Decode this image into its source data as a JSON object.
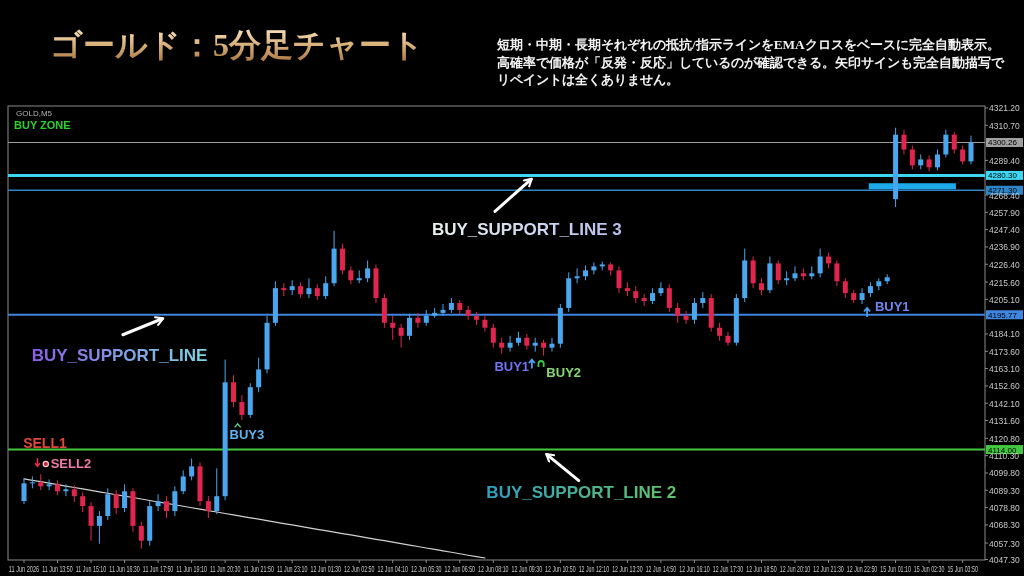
{
  "chart_data": {
    "type": "candlestick",
    "title": "ゴールド：5分足チャート",
    "subtitle": "短期・中期・長期それぞれの抵抗/指示ラインをEMAクロスをベースに完全自動表示。高確率で価格が「反発・反応」しているのが確認できる。矢印サインも完全自動描写でリペイントは全くありません。",
    "categories": [
      "11 Jun 2026",
      null,
      null,
      null,
      "11 Jun 13:50",
      null,
      null,
      null,
      "11 Jun 15:10",
      null,
      null,
      null,
      "11 Jun 16:30",
      null,
      null,
      null,
      "11 Jun 17:50",
      null,
      null,
      null,
      "11 Jun 19:10",
      null,
      null,
      null,
      "11 Jun 20:30",
      null,
      null,
      null,
      "11 Jun 21:50",
      null,
      null,
      null,
      "11 Jun 23:10",
      null,
      null,
      null,
      "12 Jun 01:30",
      null,
      null,
      null,
      "12 Jun 02:50",
      null,
      null,
      null,
      "12 Jun 04:10",
      null,
      null,
      null,
      "12 Jun 05:30",
      null,
      null,
      null,
      "12 Jun 06:50",
      null,
      null,
      null,
      "12 Jun 08:10",
      null,
      null,
      null,
      "12 Jun 09:30",
      null,
      null,
      null,
      "12 Jun 10:50",
      null,
      null,
      null,
      "12 Jun 12:10",
      null,
      null,
      null,
      "12 Jun 13:30",
      null,
      null,
      null,
      "12 Jun 14:50",
      null,
      null,
      null,
      "12 Jun 16:10",
      null,
      null,
      null,
      "12 Jun 17:30",
      null,
      null,
      null,
      "12 Jun 18:50",
      null,
      null,
      null,
      "12 Jun 20:10",
      null,
      null,
      null,
      "12 Jun 21:30",
      null,
      null,
      null,
      "12 Jun 22:50",
      null,
      null,
      null,
      "15 Jun 01:10",
      null,
      null,
      null,
      "15 Jun 02:30",
      null,
      null,
      null,
      "15 Jun 03:50",
      null
    ],
    "ohlc": [
      [
        4082.7,
        4096.5,
        4080.9,
        4093.5
      ],
      [
        4093.5,
        4097.7,
        4090.5,
        4094.1
      ],
      [
        4094.1,
        4099.0,
        4089.3,
        4091.7
      ],
      [
        4091.7,
        4095.9,
        4089.3,
        4092.9
      ],
      [
        4092.9,
        4095.3,
        4086.3,
        4088.7
      ],
      [
        4088.7,
        4092.9,
        4085.7,
        4089.9
      ],
      [
        4089.9,
        4092.3,
        4082.1,
        4085.7
      ],
      [
        4085.7,
        4088.1,
        4076.1,
        4079.7
      ],
      [
        4079.7,
        4082.1,
        4058.7,
        4067.7
      ],
      [
        4067.7,
        4076.7,
        4056.9,
        4073.7
      ],
      [
        4073.7,
        4090.5,
        4071.3,
        4086.9
      ],
      [
        4086.9,
        4089.3,
        4074.9,
        4078.5
      ],
      [
        4078.5,
        4092.9,
        4076.1,
        4088.7
      ],
      [
        4088.7,
        4090.5,
        4064.1,
        4067.7
      ],
      [
        4067.7,
        4070.1,
        4053.9,
        4058.7
      ],
      [
        4058.7,
        4082.7,
        4055.7,
        4079.7
      ],
      [
        4079.7,
        4086.9,
        4076.7,
        4082.7
      ],
      [
        4082.7,
        4085.7,
        4072.5,
        4076.7
      ],
      [
        4076.7,
        4091.7,
        4073.7,
        4088.7
      ],
      [
        4088.7,
        4101.4,
        4086.9,
        4097.7
      ],
      [
        4097.7,
        4108.6,
        4095.3,
        4103.8
      ],
      [
        4103.8,
        4106.2,
        4079.7,
        4082.7
      ],
      [
        4082.7,
        4085.7,
        4072.5,
        4076.7
      ],
      [
        4076.7,
        4102.6,
        4074.9,
        4085.7
      ],
      [
        4085.7,
        4168.6,
        4083.3,
        4154.8
      ],
      [
        4154.8,
        4159.0,
        4139.8,
        4142.8
      ],
      [
        4142.8,
        4147.0,
        4132.0,
        4135.0
      ],
      [
        4135.0,
        4154.2,
        4133.2,
        4151.8
      ],
      [
        4151.8,
        4169.8,
        4148.8,
        4162.6
      ],
      [
        4162.6,
        4195.1,
        4160.2,
        4190.9
      ],
      [
        4190.9,
        4216.1,
        4189.1,
        4211.9
      ],
      [
        4211.9,
        4214.9,
        4207.1,
        4210.7
      ],
      [
        4210.7,
        4216.7,
        4207.7,
        4213.1
      ],
      [
        4213.1,
        4215.5,
        4205.9,
        4208.3
      ],
      [
        4208.3,
        4217.9,
        4205.9,
        4211.9
      ],
      [
        4211.9,
        4214.3,
        4204.7,
        4207.1
      ],
      [
        4207.1,
        4219.1,
        4205.3,
        4214.9
      ],
      [
        4214.9,
        4246.7,
        4213.1,
        4235.9
      ],
      [
        4235.9,
        4238.9,
        4220.3,
        4222.7
      ],
      [
        4222.7,
        4225.1,
        4214.3,
        4216.7
      ],
      [
        4216.7,
        4222.7,
        4214.9,
        4217.9
      ],
      [
        4217.9,
        4228.7,
        4215.5,
        4223.9
      ],
      [
        4223.9,
        4226.3,
        4202.9,
        4205.9
      ],
      [
        4205.9,
        4208.3,
        4187.9,
        4190.9
      ],
      [
        4190.9,
        4195.1,
        4180.6,
        4187.9
      ],
      [
        4187.9,
        4190.3,
        4175.8,
        4183.0
      ],
      [
        4183.0,
        4196.3,
        4180.6,
        4193.9
      ],
      [
        4193.9,
        4196.9,
        4187.9,
        4190.9
      ],
      [
        4190.9,
        4198.7,
        4189.1,
        4195.1
      ],
      [
        4195.1,
        4199.9,
        4193.9,
        4196.9
      ],
      [
        4196.9,
        4202.3,
        4195.1,
        4198.7
      ],
      [
        4198.7,
        4205.9,
        4196.9,
        4202.9
      ],
      [
        4202.9,
        4204.7,
        4196.3,
        4198.7
      ],
      [
        4198.7,
        4201.1,
        4192.7,
        4195.1
      ],
      [
        4195.1,
        4197.5,
        4189.7,
        4192.7
      ],
      [
        4192.7,
        4195.1,
        4185.5,
        4187.9
      ],
      [
        4187.9,
        4190.3,
        4175.8,
        4178.8
      ],
      [
        4178.8,
        4181.8,
        4172.2,
        4175.8
      ],
      [
        4175.8,
        4183.0,
        4173.4,
        4178.8
      ],
      [
        4178.8,
        4185.5,
        4177.0,
        4181.8
      ],
      [
        4181.8,
        4184.2,
        4174.6,
        4177.0
      ],
      [
        4177.0,
        4181.8,
        4173.4,
        4178.8
      ],
      [
        4178.8,
        4180.6,
        4171.0,
        4175.8
      ],
      [
        4175.8,
        4181.8,
        4173.4,
        4178.2
      ],
      [
        4178.2,
        4202.3,
        4175.8,
        4199.9
      ],
      [
        4199.9,
        4221.5,
        4197.5,
        4217.9
      ],
      [
        4217.9,
        4223.9,
        4214.9,
        4219.1
      ],
      [
        4219.1,
        4225.7,
        4216.7,
        4222.7
      ],
      [
        4222.7,
        4227.5,
        4220.3,
        4225.1
      ],
      [
        4225.1,
        4228.1,
        4222.7,
        4226.3
      ],
      [
        4226.3,
        4227.5,
        4219.7,
        4222.7
      ],
      [
        4222.7,
        4225.1,
        4208.9,
        4211.9
      ],
      [
        4211.9,
        4215.5,
        4207.1,
        4210.1
      ],
      [
        4210.1,
        4213.1,
        4202.9,
        4205.9
      ],
      [
        4205.9,
        4208.3,
        4201.1,
        4204.1
      ],
      [
        4204.1,
        4211.9,
        4202.3,
        4208.9
      ],
      [
        4208.9,
        4215.5,
        4207.1,
        4211.9
      ],
      [
        4211.9,
        4214.3,
        4197.5,
        4199.9
      ],
      [
        4199.9,
        4202.9,
        4190.9,
        4195.1
      ],
      [
        4195.1,
        4198.1,
        4190.3,
        4192.7
      ],
      [
        4192.7,
        4205.9,
        4190.3,
        4202.9
      ],
      [
        4202.9,
        4209.5,
        4199.9,
        4205.9
      ],
      [
        4205.9,
        4208.3,
        4185.5,
        4187.9
      ],
      [
        4187.9,
        4190.9,
        4180.0,
        4183.0
      ],
      [
        4183.0,
        4185.5,
        4177.0,
        4178.8
      ],
      [
        4178.8,
        4208.3,
        4177.0,
        4205.9
      ],
      [
        4205.9,
        4235.9,
        4203.5,
        4228.7
      ],
      [
        4228.7,
        4231.1,
        4211.9,
        4214.9
      ],
      [
        4214.9,
        4217.9,
        4207.7,
        4210.7
      ],
      [
        4210.7,
        4231.1,
        4208.9,
        4226.9
      ],
      [
        4226.9,
        4228.7,
        4214.3,
        4216.7
      ],
      [
        4216.7,
        4222.1,
        4213.7,
        4217.9
      ],
      [
        4217.9,
        4225.1,
        4216.1,
        4220.9
      ],
      [
        4220.9,
        4223.9,
        4216.7,
        4219.1
      ],
      [
        4219.1,
        4225.1,
        4217.3,
        4220.9
      ],
      [
        4220.9,
        4235.9,
        4218.5,
        4231.1
      ],
      [
        4231.1,
        4233.5,
        4223.9,
        4226.9
      ],
      [
        4226.9,
        4228.7,
        4213.1,
        4216.1
      ],
      [
        4216.1,
        4217.9,
        4205.9,
        4208.9
      ],
      [
        4208.9,
        4210.7,
        4202.9,
        4204.7
      ],
      [
        4204.7,
        4211.9,
        4202.3,
        4208.9
      ],
      [
        4208.9,
        4215.5,
        4206.5,
        4213.1
      ],
      [
        4213.1,
        4217.9,
        4210.7,
        4216.1
      ],
      [
        4216.1,
        4220.3,
        4214.3,
        4218.5
      ],
      [
        4265.9,
        4309.2,
        4261.1,
        4305.0
      ],
      [
        4305.0,
        4308.0,
        4293.0,
        4296.0
      ],
      [
        4296.0,
        4298.4,
        4284.0,
        4286.4
      ],
      [
        4286.4,
        4293.0,
        4284.0,
        4290.0
      ],
      [
        4290.0,
        4292.4,
        4282.8,
        4285.2
      ],
      [
        4285.2,
        4296.0,
        4283.4,
        4293.0
      ],
      [
        4293.0,
        4308.0,
        4291.2,
        4305.0
      ],
      [
        4305.0,
        4306.8,
        4293.6,
        4296.0
      ],
      [
        4296.0,
        4298.4,
        4287.0,
        4288.8
      ],
      [
        4288.8,
        4304.4,
        4287.0,
        4300.2
      ]
    ],
    "colors": [
      "#4aa6ee",
      "#4aa6ee",
      "#e0264e",
      "#4aa6ee",
      "#e0264e",
      "#4aa6ee",
      "#e0264e",
      "#e0264e",
      "#e0264e",
      "#4aa6ee",
      "#4aa6ee",
      "#e0264e",
      "#4aa6ee",
      "#e0264e",
      "#e0264e",
      "#4aa6ee",
      "#4aa6ee",
      "#e0264e",
      "#4aa6ee",
      "#4aa6ee",
      "#4aa6ee",
      "#e0264e",
      "#e0264e",
      "#4aa6ee",
      "#4aa6ee",
      "#e0264e",
      "#e0264e",
      "#4aa6ee",
      "#4aa6ee",
      "#4aa6ee",
      "#4aa6ee",
      "#e0264e",
      "#4aa6ee",
      "#e0264e",
      "#4aa6ee",
      "#e0264e",
      "#4aa6ee",
      "#4aa6ee",
      "#e0264e",
      "#e0264e",
      "#4aa6ee",
      "#4aa6ee",
      "#e0264e",
      "#e0264e",
      "#e0264e",
      "#e0264e",
      "#4aa6ee",
      "#e0264e",
      "#4aa6ee",
      "#4aa6ee",
      "#4aa6ee",
      "#4aa6ee",
      "#e0264e",
      "#e0264e",
      "#e0264e",
      "#e0264e",
      "#e0264e",
      "#e0264e",
      "#4aa6ee",
      "#4aa6ee",
      "#e0264e",
      "#4aa6ee",
      "#e0264e",
      "#4aa6ee",
      "#4aa6ee",
      "#4aa6ee",
      "#4aa6ee",
      "#4aa6ee",
      "#4aa6ee",
      "#4aa6ee",
      "#e0264e",
      "#e0264e",
      "#e0264e",
      "#e0264e",
      "#e0264e",
      "#4aa6ee",
      "#4aa6ee",
      "#e0264e",
      "#e0264e",
      "#e0264e",
      "#4aa6ee",
      "#4aa6ee",
      "#e0264e",
      "#e0264e",
      "#e0264e",
      "#4aa6ee",
      "#4aa6ee",
      "#e0264e",
      "#e0264e",
      "#4aa6ee",
      "#e0264e",
      "#4aa6ee",
      "#4aa6ee",
      "#e0264e",
      "#4aa6ee",
      "#4aa6ee",
      "#e0264e",
      "#e0264e",
      "#e0264e",
      "#e0264e",
      "#4aa6ee",
      "#4aa6ee",
      "#4aa6ee",
      "#4aa6ee",
      "#4aa6ee",
      "#e0264e",
      "#e0264e",
      "#4aa6ee",
      "#e0264e",
      "#4aa6ee",
      "#4aa6ee",
      "#e0264e",
      "#e0264e",
      "#4aa6ee"
    ],
    "series": [
      {
        "type": "line",
        "color": "#d0d0d0",
        "values": [
          4096.2,
          4095.3,
          4094.5,
          4093.6,
          4092.7,
          4091.8,
          4091.0,
          4090.1,
          4089.2,
          4088.3,
          4087.5,
          4086.6,
          4085.7,
          4084.9,
          4084.0,
          4083.1,
          4082.2,
          4081.4,
          4080.5,
          4079.6,
          4078.7,
          4077.9,
          4077.0,
          4076.1,
          4075.2,
          4074.4,
          4073.5,
          4072.6,
          4071.8,
          4070.9,
          4070.0,
          4069.1,
          4068.3,
          4067.4,
          4066.5,
          4065.6,
          4064.8,
          4063.9,
          4063.0,
          4062.2,
          4061.3,
          4060.4,
          4059.5,
          4058.7,
          4057.8,
          4056.9,
          4056.0,
          4055.2,
          4054.3,
          4053.4,
          4052.5,
          4051.7,
          4050.8,
          4049.9,
          4049.1,
          4048.2,
          null,
          null,
          null,
          null,
          null,
          null,
          null,
          null,
          null,
          null,
          null,
          null,
          null,
          null,
          null,
          null,
          null,
          null,
          null,
          null,
          null,
          null,
          null,
          null,
          null,
          null,
          null,
          null,
          null,
          null,
          null,
          null,
          null,
          null,
          null,
          null,
          null,
          null,
          null,
          null,
          null,
          null,
          null,
          null,
          null,
          null,
          null,
          null,
          null,
          null,
          null,
          null,
          null,
          null,
          null,
          null,
          null,
          null
        ]
      }
    ],
    "ylim": [
      4047.0,
      4322.4
    ],
    "yticks": [
      {
        "value": 4321.2,
        "label": "4321.20"
      },
      {
        "value": 4310.7,
        "label": "4310.70"
      },
      {
        "value": 4289.4,
        "label": "4289.40"
      },
      {
        "value": 4268.4,
        "label": "4268.40"
      },
      {
        "value": 4257.9,
        "label": "4257.90"
      },
      {
        "value": 4247.4,
        "label": "4247.40"
      },
      {
        "value": 4236.9,
        "label": "4236.90"
      },
      {
        "value": 4226.4,
        "label": "4226.40"
      },
      {
        "value": 4215.6,
        "label": "4215.60"
      },
      {
        "value": 4205.1,
        "label": "4205.10"
      },
      {
        "value": 4184.1,
        "label": "4184.10"
      },
      {
        "value": 4173.6,
        "label": "4173.60"
      },
      {
        "value": 4163.1,
        "label": "4163.10"
      },
      {
        "value": 4152.6,
        "label": "4152.60"
      },
      {
        "value": 4142.1,
        "label": "4142.10"
      },
      {
        "value": 4131.6,
        "label": "4131.60"
      },
      {
        "value": 4120.8,
        "label": "4120.80"
      },
      {
        "value": 4110.3,
        "label": "4110.30"
      },
      {
        "value": 4099.8,
        "label": "4099.80"
      },
      {
        "value": 4089.3,
        "label": "4089.30"
      },
      {
        "value": 4078.8,
        "label": "4078.80"
      },
      {
        "value": 4068.3,
        "label": "4068.30"
      },
      {
        "value": 4057.3,
        "label": "4057.30"
      },
      {
        "value": 4047.3,
        "label": "4047.30"
      }
    ],
    "ref_lines": [
      {
        "axis": "y",
        "value": 4300.26,
        "label": "4300.26",
        "color": "#a0a0a0"
      },
      {
        "axis": "y",
        "value": 4280.3,
        "label": "4280.30",
        "color": "#3dd6f2"
      },
      {
        "axis": "y",
        "value": 4271.3,
        "label": "4271.30",
        "color": "#2e86c8"
      },
      {
        "axis": "y",
        "value": 4195.77,
        "label": "4195.77",
        "color": "#3f86e0"
      },
      {
        "axis": "y",
        "value": 4114.0,
        "label": "4114.00",
        "color": "#43c63f"
      }
    ],
    "annotations": [
      "GOLD,M5",
      "BUY ZONE",
      {
        "text": "BUY_SUPPORT_LINE 3",
        "y": 4280.3
      },
      {
        "text": "BUY_SUPPORT_LINE",
        "y": 4195.77
      },
      {
        "text": "BUY_SUPPORT_LINE 2",
        "y": 4114.0
      },
      {
        "text": "SELL1",
        "y": 4100.2
      },
      "SELL2",
      {
        "text": "BUY3",
        "y": 4132.0
      },
      {
        "text": "BUY1",
        "y": 4171.0
      },
      "BUY2",
      "BUY1"
    ]
  }
}
